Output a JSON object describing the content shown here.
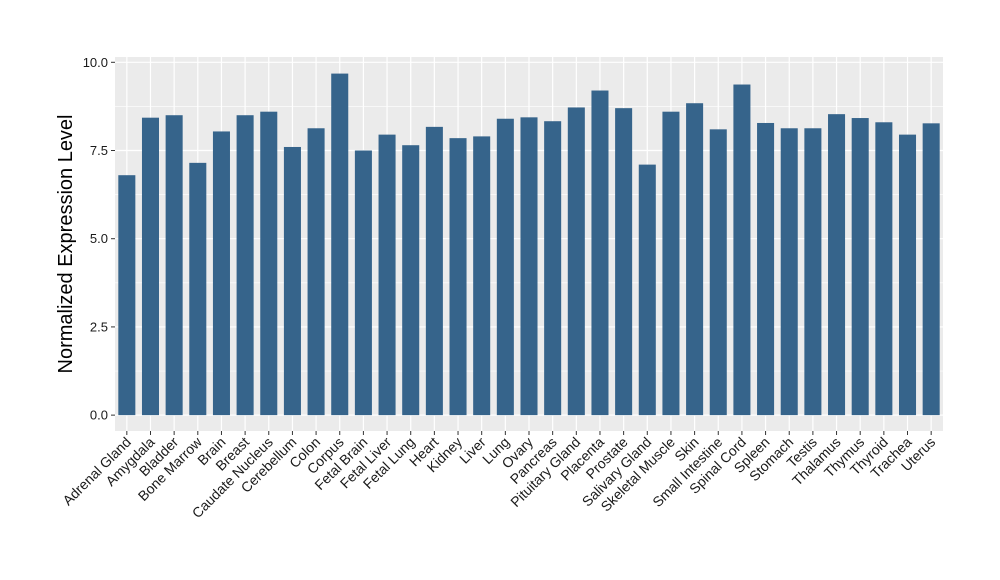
{
  "chart_data": {
    "type": "bar",
    "title": "",
    "xlabel": "",
    "ylabel": "Normalized Expression Level",
    "ylim": [
      -0.45,
      10.15
    ],
    "yticks": [
      "0.0",
      "2.5",
      "5.0",
      "7.5",
      "10.0"
    ],
    "ytick_values": [
      0,
      2.5,
      5.0,
      7.5,
      10.0
    ],
    "grid": true,
    "colors": {
      "bar": "#36648b",
      "panel": "#ebebeb",
      "grid": "#ffffff"
    },
    "categories": [
      "Adrenal Gland",
      "Amygdala",
      "Bladder",
      "Bone Marrow",
      "Brain",
      "Breast",
      "Caudate Nucleus",
      "Cerebellum",
      "Colon",
      "Corpus",
      "Fetal Brain",
      "Fetal Liver",
      "Fetal Lung",
      "Heart",
      "Kidney",
      "Liver",
      "Lung",
      "Ovary",
      "Pancreas",
      "Pituitary Gland",
      "Placenta",
      "Prostate",
      "Salivary Gland",
      "Skeletal Muscle",
      "Skin",
      "Small Intestine",
      "Spinal Cord",
      "Spleen",
      "Stomach",
      "Testis",
      "Thalamus",
      "Thymus",
      "Thyroid",
      "Trachea",
      "Uterus"
    ],
    "values": [
      6.8,
      8.43,
      8.5,
      7.15,
      8.04,
      8.5,
      8.6,
      7.6,
      8.13,
      9.68,
      7.5,
      7.95,
      7.65,
      8.17,
      7.85,
      7.9,
      8.4,
      8.44,
      8.33,
      8.72,
      9.2,
      8.7,
      7.1,
      8.6,
      8.84,
      8.1,
      9.37,
      8.28,
      8.13,
      8.13,
      8.53,
      8.42,
      8.3,
      7.95,
      8.27
    ]
  }
}
